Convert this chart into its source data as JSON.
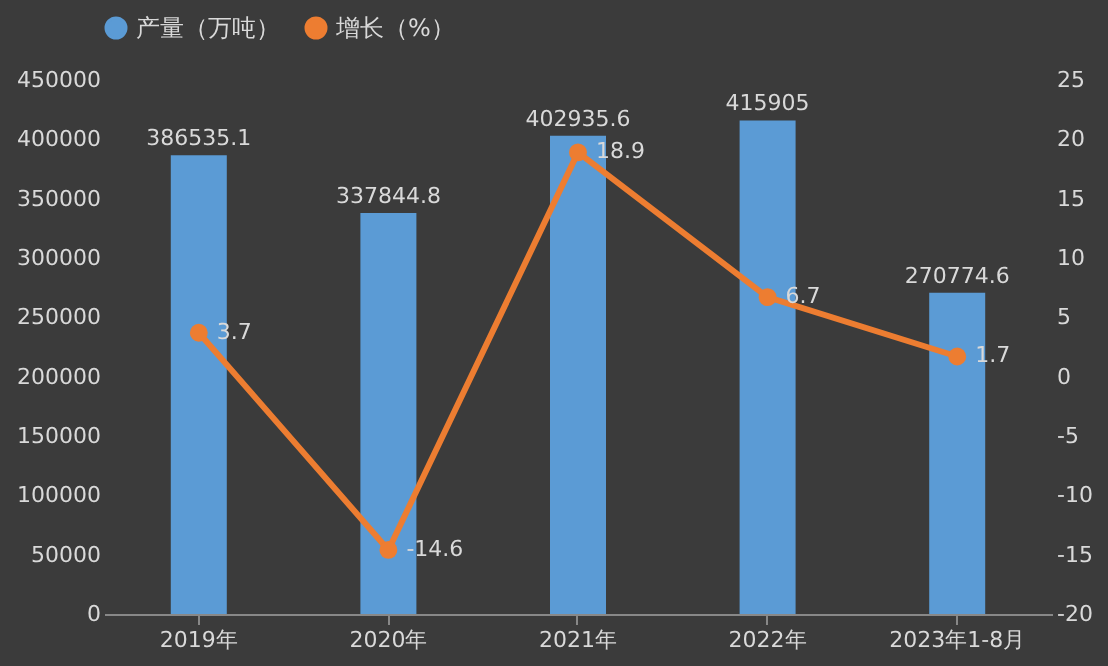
{
  "chart_data": {
    "type": "bar",
    "categories": [
      "2019年",
      "2020年",
      "2021年",
      "2022年",
      "2023年1-8月"
    ],
    "series": [
      {
        "name": "产量（万吨）",
        "color": "#5b9bd5",
        "values": [
          386535.1,
          337844.8,
          402935.6,
          415905,
          270774.6
        ]
      },
      {
        "name": "增长（%）",
        "type": "line",
        "axis": "y2",
        "color": "#ed7d31",
        "values": [
          3.7,
          -14.6,
          18.9,
          6.7,
          1.7
        ]
      }
    ],
    "ylim": [
      0,
      450000
    ],
    "yticks": [
      0,
      50000,
      100000,
      150000,
      200000,
      250000,
      300000,
      350000,
      400000,
      450000
    ],
    "y2lim": [
      -20,
      25
    ],
    "y2ticks": [
      -20,
      -15,
      -10,
      -5,
      0,
      5,
      10,
      15,
      20,
      25
    ],
    "data_labels": true,
    "legend": "top",
    "marker": "circle",
    "grid": false
  }
}
